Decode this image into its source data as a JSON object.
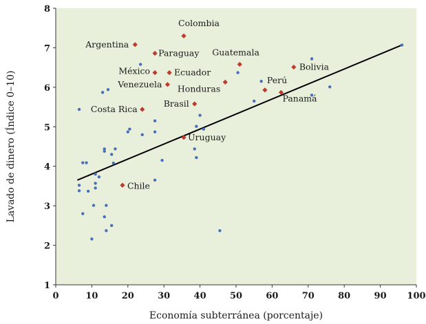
{
  "chart_data": {
    "type": "scatter",
    "title": "",
    "xlabel": "Economía subterránea (porcentaje)",
    "ylabel": "Lavado de dinero (Índice 0–10)",
    "xlim": [
      0,
      100
    ],
    "ylim": [
      1,
      8
    ],
    "xticks": [
      0,
      10,
      20,
      30,
      40,
      50,
      60,
      70,
      80,
      90,
      100
    ],
    "yticks": [
      1,
      2,
      3,
      4,
      5,
      6,
      7,
      8
    ],
    "grid": false,
    "background_color": "#e8f0dc",
    "colors": {
      "highlight": "#c0392b",
      "other": "#4a6fb8",
      "trend": "#000000"
    },
    "trend_line": {
      "x": [
        6,
        96
      ],
      "y": [
        3.65,
        7.07
      ]
    },
    "highlighted": [
      {
        "label": "Colombia",
        "x": 35.5,
        "y": 7.3
      },
      {
        "label": "Argentina",
        "x": 22.0,
        "y": 7.08
      },
      {
        "label": "Paraguay",
        "x": 27.5,
        "y": 6.86
      },
      {
        "label": "México",
        "x": 27.5,
        "y": 6.37
      },
      {
        "label": "Ecuador",
        "x": 31.5,
        "y": 6.37
      },
      {
        "label": "Venezuela",
        "x": 31.0,
        "y": 6.07
      },
      {
        "label": "Guatemala",
        "x": 51.0,
        "y": 6.58
      },
      {
        "label": "Bolivia",
        "x": 66.0,
        "y": 6.51
      },
      {
        "label": "Honduras",
        "x": 47.0,
        "y": 6.13
      },
      {
        "label": "Perú",
        "x": 58.0,
        "y": 5.93
      },
      {
        "label": "Panamá",
        "x": 62.5,
        "y": 5.87
      },
      {
        "label": "Brasil",
        "x": 38.5,
        "y": 5.58
      },
      {
        "label": "Costa Rica",
        "x": 24.0,
        "y": 5.44
      },
      {
        "label": "Uruguay",
        "x": 35.5,
        "y": 4.73
      },
      {
        "label": "Chile",
        "x": 18.5,
        "y": 3.52
      }
    ],
    "others": [
      {
        "x": 6.5,
        "y": 5.44
      },
      {
        "x": 6.5,
        "y": 3.52
      },
      {
        "x": 6.5,
        "y": 3.38
      },
      {
        "x": 7.5,
        "y": 4.09
      },
      {
        "x": 8.5,
        "y": 4.09
      },
      {
        "x": 7.5,
        "y": 2.8
      },
      {
        "x": 9.0,
        "y": 3.37
      },
      {
        "x": 10.0,
        "y": 2.16
      },
      {
        "x": 10.5,
        "y": 3.01
      },
      {
        "x": 11.0,
        "y": 3.57
      },
      {
        "x": 11.0,
        "y": 3.8
      },
      {
        "x": 11.0,
        "y": 3.45
      },
      {
        "x": 12.0,
        "y": 3.73
      },
      {
        "x": 13.0,
        "y": 5.87
      },
      {
        "x": 13.5,
        "y": 4.44
      },
      {
        "x": 13.5,
        "y": 4.38
      },
      {
        "x": 13.5,
        "y": 2.72
      },
      {
        "x": 14.0,
        "y": 2.37
      },
      {
        "x": 14.0,
        "y": 3.01
      },
      {
        "x": 14.5,
        "y": 5.94
      },
      {
        "x": 15.5,
        "y": 4.3
      },
      {
        "x": 15.5,
        "y": 2.5
      },
      {
        "x": 16.0,
        "y": 4.08
      },
      {
        "x": 16.5,
        "y": 4.44
      },
      {
        "x": 20.0,
        "y": 4.87
      },
      {
        "x": 20.5,
        "y": 4.94
      },
      {
        "x": 23.5,
        "y": 6.58
      },
      {
        "x": 24.0,
        "y": 4.8
      },
      {
        "x": 27.5,
        "y": 5.15
      },
      {
        "x": 27.5,
        "y": 4.87
      },
      {
        "x": 27.5,
        "y": 3.65
      },
      {
        "x": 29.5,
        "y": 4.15
      },
      {
        "x": 38.5,
        "y": 4.44
      },
      {
        "x": 39.0,
        "y": 5.01
      },
      {
        "x": 39.0,
        "y": 4.22
      },
      {
        "x": 40.0,
        "y": 5.29
      },
      {
        "x": 41.0,
        "y": 4.94
      },
      {
        "x": 45.5,
        "y": 2.37
      },
      {
        "x": 50.5,
        "y": 6.37
      },
      {
        "x": 55.0,
        "y": 5.65
      },
      {
        "x": 57.0,
        "y": 6.15
      },
      {
        "x": 71.0,
        "y": 6.72
      },
      {
        "x": 71.0,
        "y": 5.8
      },
      {
        "x": 76.0,
        "y": 6.01
      },
      {
        "x": 96.0,
        "y": 7.07
      }
    ]
  }
}
